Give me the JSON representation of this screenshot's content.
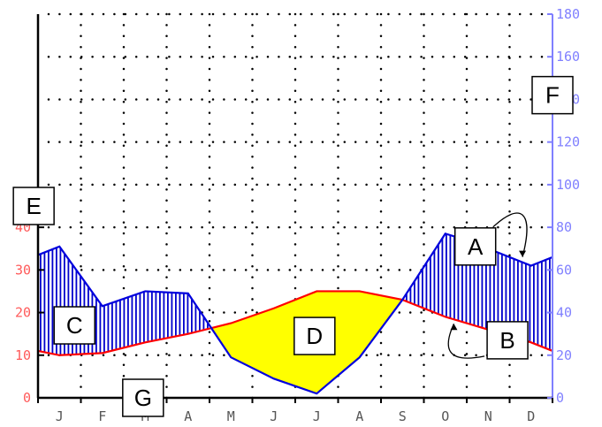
{
  "chart_data": {
    "type": "line",
    "categories": [
      "J",
      "F",
      "M",
      "A",
      "M",
      "J",
      "J",
      "A",
      "S",
      "O",
      "N",
      "D"
    ],
    "temperature": {
      "x": [
        0,
        0.5,
        1.5,
        2.5,
        3.5,
        4.5,
        5.5,
        6.5,
        7.5,
        8.5,
        9.5,
        10.5,
        11.5,
        12
      ],
      "values": [
        11,
        10,
        10.5,
        13,
        15,
        17.5,
        21,
        25,
        25,
        23,
        19,
        16,
        13,
        11
      ],
      "color": "#ff0000",
      "axis": "left"
    },
    "precipitation": {
      "x": [
        0,
        0.5,
        1.5,
        2.5,
        3.5,
        4.5,
        5.5,
        6.5,
        7.5,
        8.5,
        9.5,
        10,
        10.5,
        11.5,
        12
      ],
      "values": [
        67,
        71,
        43,
        50,
        49,
        19,
        9,
        2,
        19,
        46,
        77,
        74,
        70,
        62,
        66
      ],
      "color": "#0000dd",
      "axis": "right"
    },
    "left_axis": {
      "ticks": [
        0,
        10,
        20,
        30,
        40
      ],
      "range": [
        0,
        90
      ],
      "color": "#ff5a5a"
    },
    "right_axis": {
      "ticks": [
        0,
        20,
        40,
        60,
        80,
        100,
        120,
        140,
        160,
        180
      ],
      "range": [
        0,
        180
      ],
      "color": "#8080ff"
    },
    "humid_fill_color": "#0000cc",
    "dry_fill_color": "#ffff00",
    "grid": true,
    "annotations": [
      {
        "label": "A",
        "x": 10.2,
        "y_right": 71
      },
      {
        "label": "B",
        "x": 10.95,
        "y_right": 27
      },
      {
        "label": "C",
        "x": 0.85,
        "y_right": 34
      },
      {
        "label": "D",
        "x": 6.45,
        "y_right": 29
      },
      {
        "label": "E",
        "x": -0.1,
        "y_right": 90
      },
      {
        "label": "F",
        "x": 12.0,
        "y_right": 142
      },
      {
        "label": "G",
        "x": 2.45,
        "y_right": 0
      }
    ]
  }
}
